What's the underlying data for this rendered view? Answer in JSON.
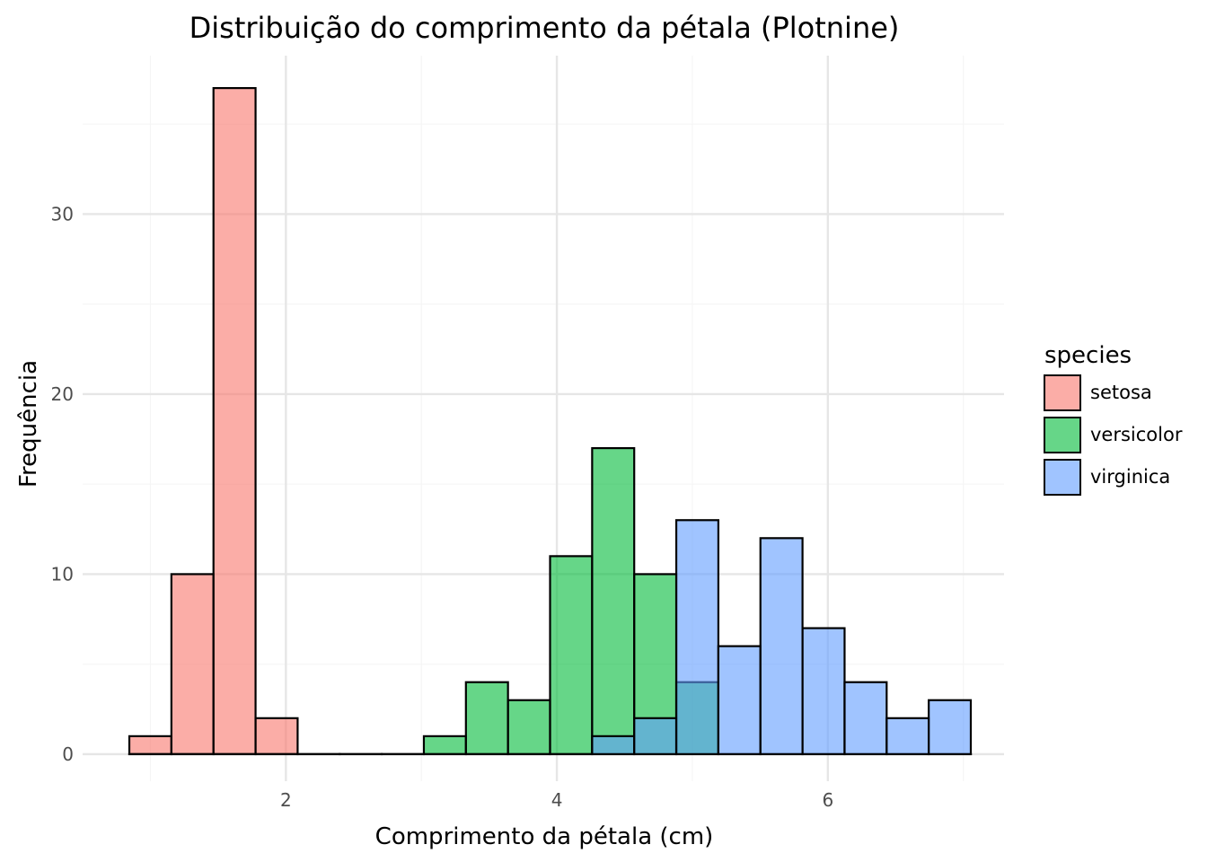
{
  "chart_data": {
    "type": "bar",
    "subtype": "overlapping-histogram",
    "title": "Distribuição do comprimento da pétala (Plotnine)",
    "xlabel": "Comprimento da pétala (cm)",
    "ylabel": "Frequência",
    "xlim": [
      0.5,
      7.3
    ],
    "ylim": [
      -1.5,
      38.8
    ],
    "x_ticks": [
      2,
      4,
      6
    ],
    "y_ticks": [
      0,
      10,
      20,
      30
    ],
    "grid": true,
    "legend": {
      "title": "species",
      "position": "right"
    },
    "bin_width": 0.3105,
    "bin_centers": [
      1.0,
      1.3105,
      1.621,
      1.9315,
      2.242,
      2.5525,
      2.863,
      3.1735,
      3.484,
      3.7945,
      4.105,
      4.4155,
      4.726,
      5.0365,
      5.347,
      5.6575,
      5.968,
      6.2785,
      6.589,
      6.8995
    ],
    "series": [
      {
        "name": "setosa",
        "color": "#F8766D",
        "values": [
          1,
          10,
          37,
          2,
          0,
          0,
          0,
          0,
          0,
          0,
          0,
          0,
          0,
          0,
          0,
          0,
          0,
          0,
          0,
          0
        ]
      },
      {
        "name": "versicolor",
        "color": "#00BA38",
        "values": [
          0,
          0,
          0,
          0,
          0,
          0,
          0,
          1,
          4,
          3,
          11,
          17,
          10,
          4,
          0,
          0,
          0,
          0,
          0,
          0
        ]
      },
      {
        "name": "virginica",
        "color": "#619CFF",
        "values": [
          0,
          0,
          0,
          0,
          0,
          0,
          0,
          0,
          0,
          0,
          0,
          1,
          2,
          13,
          6,
          12,
          7,
          4,
          2,
          3
        ]
      }
    ]
  }
}
